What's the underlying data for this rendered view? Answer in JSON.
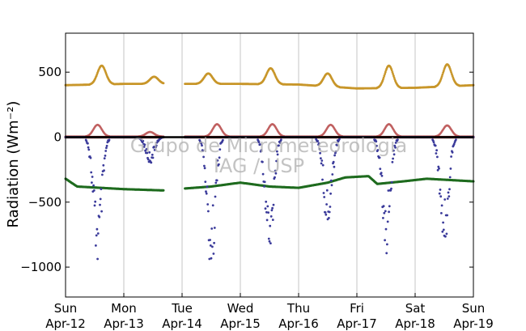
{
  "chart_data": {
    "type": "scatter",
    "title": "",
    "xlabel": "",
    "ylabel": "Radiation (Wm⁻²)",
    "ylim": [
      -1230,
      800
    ],
    "xlim": [
      0,
      7
    ],
    "grid": "vertical-only",
    "y_ticks": [
      500,
      0,
      -500,
      -1000
    ],
    "y_tick_labels": [
      "500",
      "0",
      "−500",
      "−1000"
    ],
    "x_tick_labels": [
      {
        "day": "Sun",
        "date": "Apr-12"
      },
      {
        "day": "Mon",
        "date": "Apr-13"
      },
      {
        "day": "Tue",
        "date": "Apr-14"
      },
      {
        "day": "Wed",
        "date": "Apr-15"
      },
      {
        "day": "Thu",
        "date": "Apr-16"
      },
      {
        "day": "Fri",
        "date": "Apr-17"
      },
      {
        "day": "Sat",
        "date": "Apr-18"
      },
      {
        "day": "Sun",
        "date": "Apr-19"
      }
    ],
    "watermark": [
      "Grupo de Micrometeorologia",
      "IAG / USP"
    ],
    "gap": [
      1.68,
      2.05
    ],
    "zero_line": {
      "y": 0,
      "color": "#000000"
    },
    "series": [
      {
        "color": "#c8962a",
        "baseline": [
          [
            0,
            400
          ],
          [
            1,
            410
          ],
          [
            2,
            410
          ],
          [
            3,
            410
          ],
          [
            4,
            405
          ],
          [
            5,
            375
          ],
          [
            6,
            380
          ],
          [
            7,
            400
          ]
        ],
        "peaks": [
          [
            0.62,
            550
          ],
          [
            1.52,
            465
          ],
          [
            2.45,
            490
          ],
          [
            3.52,
            530
          ],
          [
            4.5,
            490
          ],
          [
            5.55,
            550
          ],
          [
            6.55,
            560
          ]
        ],
        "size": 1.4
      },
      {
        "color": "#c06060",
        "baseline": [
          [
            0,
            5
          ],
          [
            7,
            5
          ]
        ],
        "peaks": [
          [
            0.55,
            95
          ],
          [
            1.45,
            40
          ],
          [
            2.6,
            100
          ],
          [
            3.55,
            100
          ],
          [
            4.55,
            95
          ],
          [
            5.55,
            100
          ],
          [
            6.55,
            90
          ]
        ],
        "size": 1.3
      },
      {
        "color": "#8b1a1a",
        "baseline": [
          [
            0,
            0
          ],
          [
            7,
            0
          ]
        ],
        "peaks": [],
        "size": 1.6
      },
      {
        "color": "#1e6b1e",
        "baseline": [
          [
            0,
            -320
          ],
          [
            0.2,
            -380
          ],
          [
            1,
            -400
          ],
          [
            1.68,
            -410
          ],
          [
            2.05,
            -395
          ],
          [
            2.5,
            -380
          ],
          [
            3,
            -350
          ],
          [
            3.5,
            -380
          ],
          [
            4,
            -390
          ],
          [
            4.5,
            -350
          ],
          [
            4.8,
            -310
          ],
          [
            5.2,
            -300
          ],
          [
            5.35,
            -360
          ],
          [
            5.8,
            -340
          ],
          [
            6.2,
            -320
          ],
          [
            7,
            -340
          ]
        ],
        "peaks": [],
        "size": 1.5
      },
      {
        "color": "#3a3a9a",
        "baseline": [
          [
            0,
            0
          ],
          [
            7,
            0
          ]
        ],
        "peaks": [
          [
            0.55,
            -950
          ],
          [
            1.45,
            -200
          ],
          [
            2.5,
            -1000
          ],
          [
            3.5,
            -900
          ],
          [
            4.5,
            -700
          ],
          [
            5.5,
            -860
          ],
          [
            6.5,
            -850
          ]
        ],
        "size": 1.4
      }
    ]
  }
}
